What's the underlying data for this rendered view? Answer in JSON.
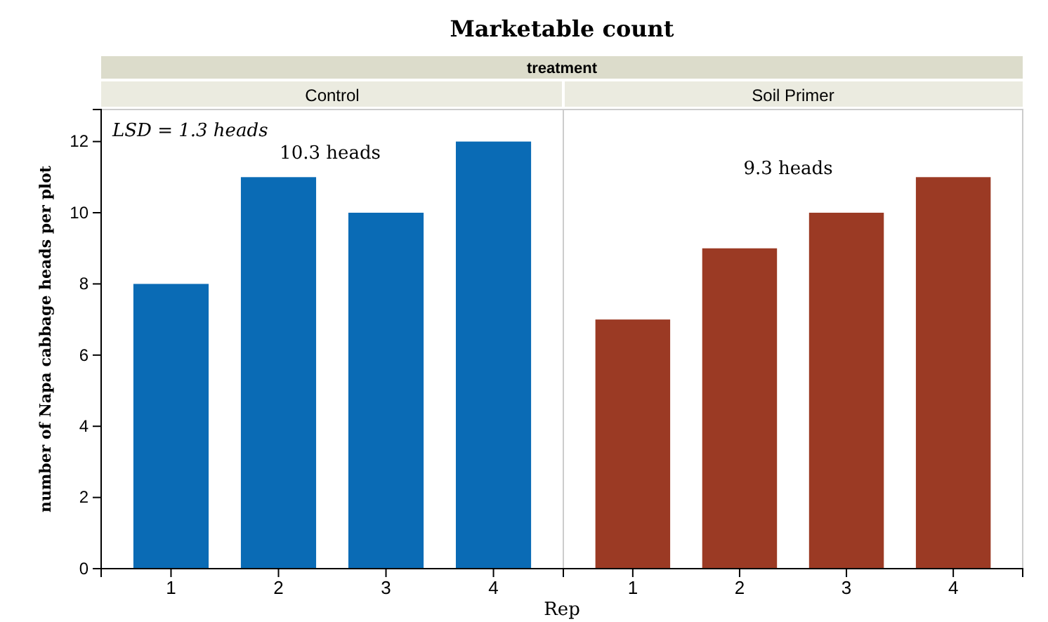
{
  "chart_data": {
    "type": "bar",
    "title": "Marketable count",
    "xlabel": "Rep",
    "ylabel": "number of Napa cabbage heads per plot",
    "categories": [
      "1",
      "2",
      "3",
      "4",
      "1",
      "2",
      "3",
      "4"
    ],
    "values": [
      8,
      11,
      10,
      12,
      7,
      9,
      10,
      11
    ],
    "colors": [
      "#0a6bb5",
      "#0a6bb5",
      "#0a6bb5",
      "#0a6bb5",
      "#9b3a24",
      "#9b3a24",
      "#9b3a24",
      "#9b3a24"
    ],
    "ylim": [
      0,
      12.9
    ],
    "yticks": [
      0,
      2,
      4,
      6,
      8,
      10,
      12
    ],
    "grid": false,
    "annotations": [
      "treatment",
      "Control",
      "Soil Primer",
      "LSD = 1.3 heads",
      "10.3 heads",
      "9.3 heads"
    ]
  }
}
